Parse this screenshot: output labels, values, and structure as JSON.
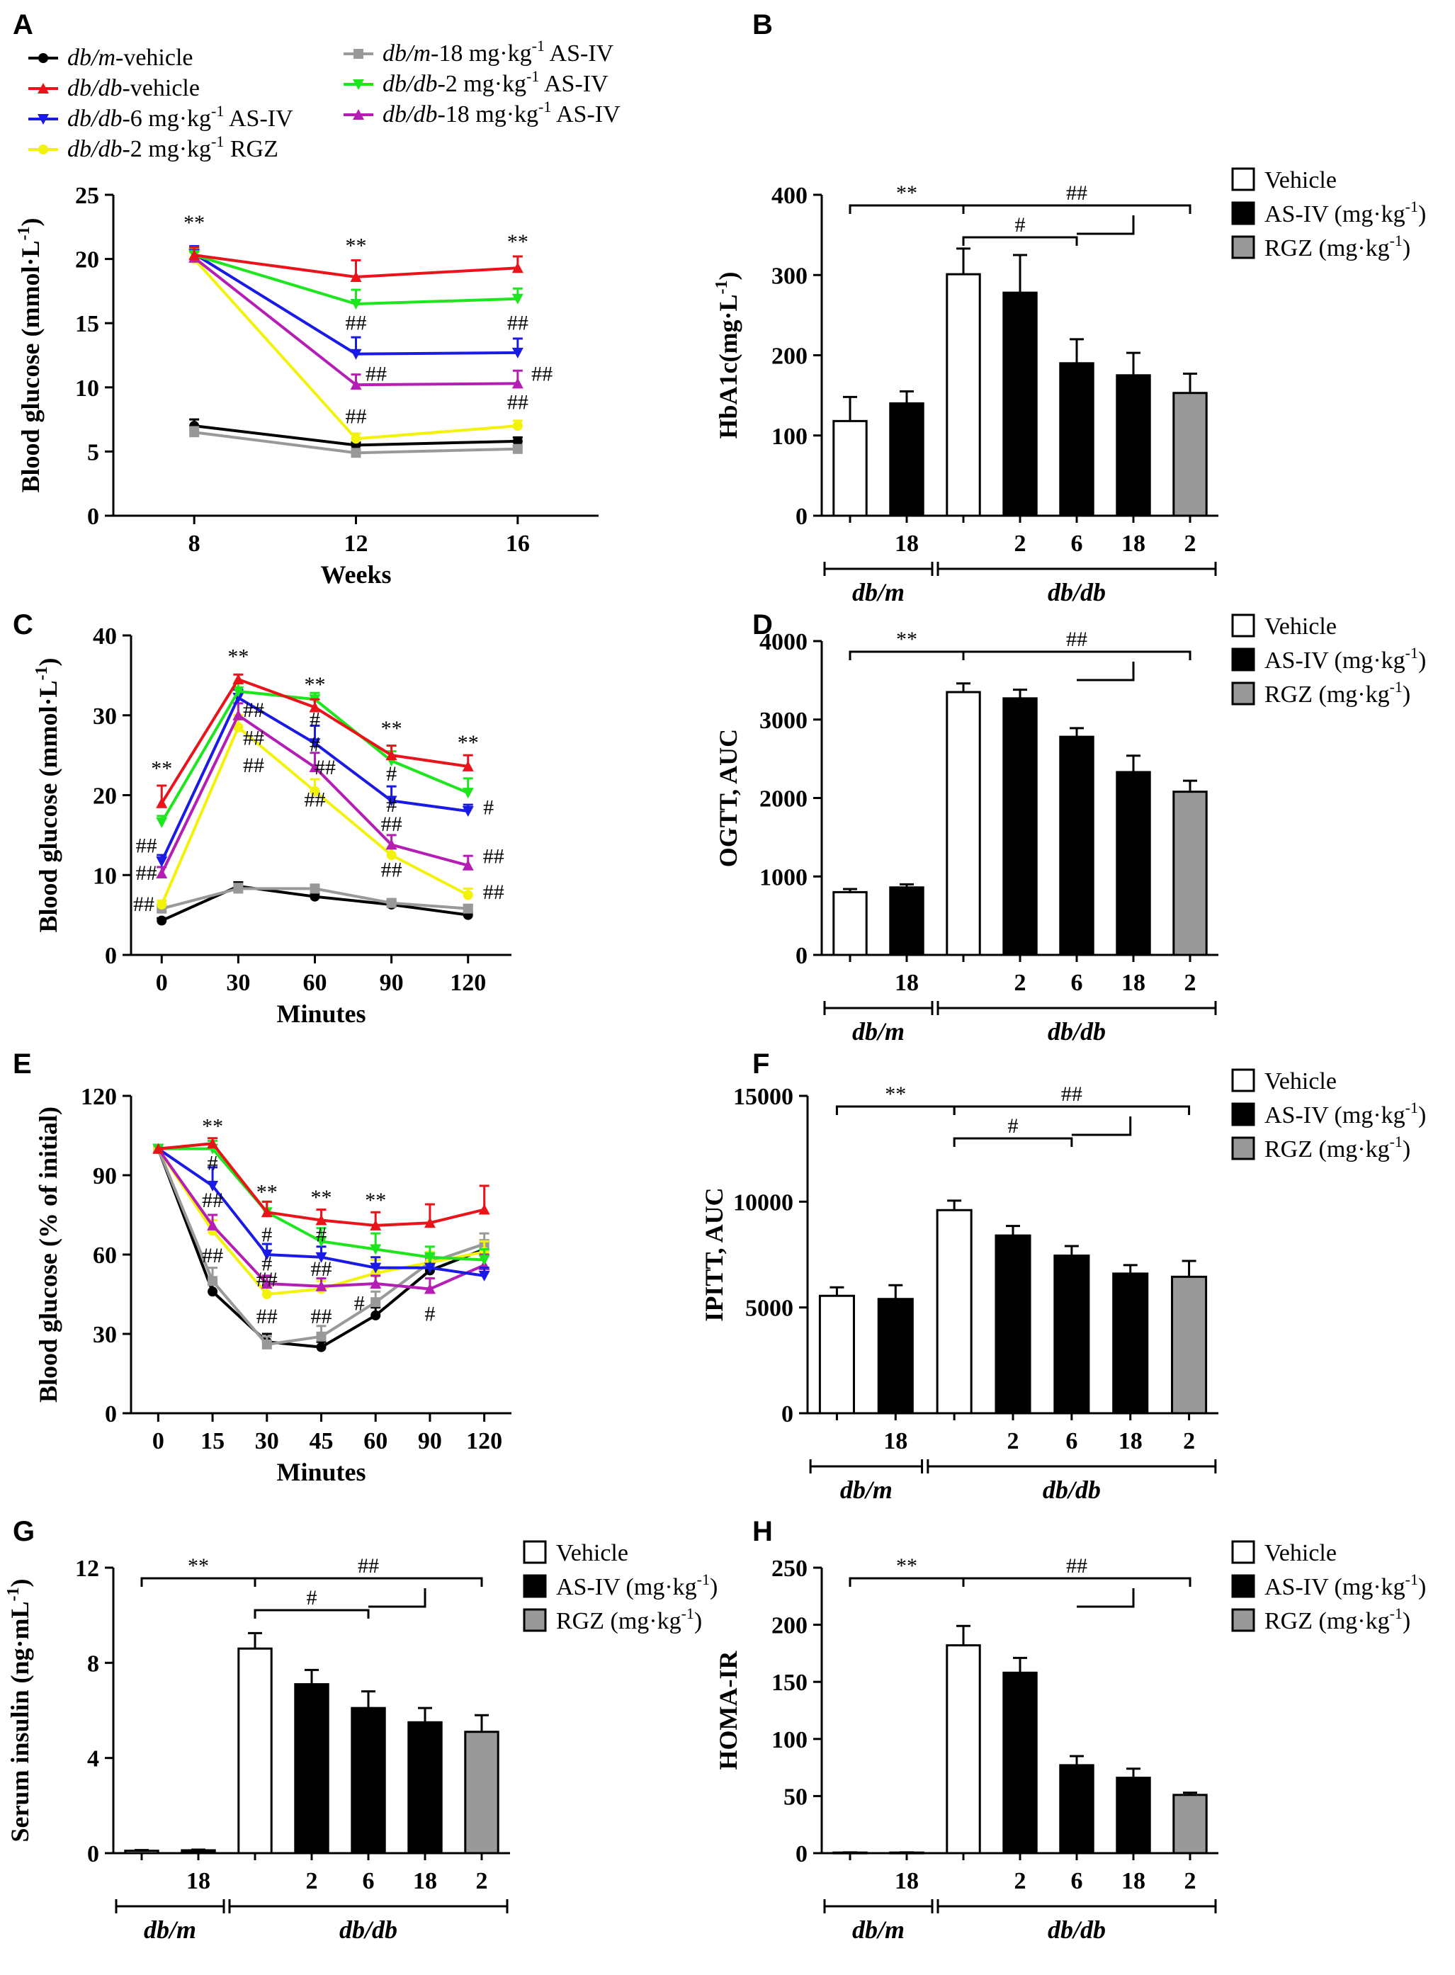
{
  "figure": {
    "series_legend": [
      {
        "name": "db/m-vehicle",
        "color": "#000000"
      },
      {
        "name": "db/db-vehicle",
        "color": "#e8141a"
      },
      {
        "name": "db/db-6 mg·kg-1 AS-IV",
        "color": "#1a1ae6"
      },
      {
        "name": "db/db-2 mg·kg-1 RGZ",
        "color": "#f2f20a"
      },
      {
        "name": "db/m-18 mg·kg-1 AS-IV",
        "color": "#999999"
      },
      {
        "name": "db/db-2 mg·kg-1 AS-IV",
        "color": "#1ee61e"
      },
      {
        "name": "db/db-18 mg·kg-1 AS-IV",
        "color": "#b41eb4"
      }
    ],
    "legend_items": [
      {
        "pre": "db/m",
        "post": "-vehicle"
      },
      {
        "pre": "db/db",
        "post": "-vehicle"
      },
      {
        "pre": "db/db",
        "post": "-6 mg·kg",
        "sup": "-1",
        "tail": " AS-IV"
      },
      {
        "pre": "db/db",
        "post": "-2 mg·kg",
        "sup": "-1",
        "tail": " RGZ"
      },
      {
        "pre": "db/m",
        "post": "-18 mg·kg",
        "sup": "-1",
        "tail": " AS-IV"
      },
      {
        "pre": "db/db",
        "post": "-2 mg·kg",
        "sup": "-1",
        "tail": " AS-IV"
      },
      {
        "pre": "db/db",
        "post": "-18 mg·kg",
        "sup": "-1",
        "tail": " AS-IV"
      }
    ],
    "bar_legend": {
      "items": [
        {
          "label": "Vehicle",
          "fill": "#ffffff"
        },
        {
          "label": "AS-IV (mg·kg",
          "sup": "-1",
          "close": ")",
          "fill": "#000000"
        },
        {
          "label": "RGZ (mg·kg",
          "sup": "-1",
          "close": ")",
          "fill": "#999999"
        }
      ]
    },
    "bar_group_labels": {
      "dbm": "db/m",
      "dbdb": "db/db"
    },
    "bar_dose_labels": [
      "",
      "18",
      "",
      "2",
      "6",
      "18",
      "2"
    ],
    "bar_fill_map": [
      "#ffffff",
      "#000000",
      "#ffffff",
      "#000000",
      "#000000",
      "#000000",
      "#999999"
    ]
  },
  "chart_data": [
    {
      "panel": "A",
      "type": "line",
      "xlabel": "Weeks",
      "ylabel": "Blood glucose (mmol·L",
      "ylabel_sup": "-1",
      "ylabel_close": ")",
      "x": [
        8,
        12,
        16
      ],
      "xlim": [
        6,
        18
      ],
      "ylim": [
        0,
        25
      ],
      "yticks": [
        0,
        5,
        10,
        15,
        20,
        25
      ],
      "series": [
        {
          "name": "db/m-vehicle",
          "color": "#000000",
          "values": [
            7.0,
            5.5,
            5.8
          ],
          "err": [
            0.5,
            0.2,
            0.3
          ]
        },
        {
          "name": "db/m-18 mg·kg-1 AS-IV",
          "color": "#999999",
          "values": [
            6.5,
            4.9,
            5.2
          ],
          "err": [
            0.4,
            0.2,
            0.3
          ]
        },
        {
          "name": "db/db-2 mg·kg-1 RGZ",
          "color": "#f2f20a",
          "values": [
            20.0,
            6.0,
            7.0
          ],
          "err": [
            0.5,
            0.4,
            0.4
          ]
        },
        {
          "name": "db/db-18 mg·kg-1 AS-IV",
          "color": "#b41eb4",
          "values": [
            20.1,
            10.2,
            10.3
          ],
          "err": [
            0.5,
            0.8,
            1.0
          ]
        },
        {
          "name": "db/db-6 mg·kg-1 AS-IV",
          "color": "#1a1ae6",
          "values": [
            20.4,
            12.6,
            12.7
          ],
          "err": [
            0.6,
            1.3,
            1.1
          ]
        },
        {
          "name": "db/db-2 mg·kg-1 AS-IV",
          "color": "#1ee61e",
          "values": [
            20.3,
            16.5,
            16.9
          ],
          "err": [
            0.6,
            1.1,
            0.8
          ]
        },
        {
          "name": "db/db-vehicle",
          "color": "#e8141a",
          "values": [
            20.3,
            18.6,
            19.3
          ],
          "err": [
            0.6,
            1.3,
            0.9
          ]
        }
      ],
      "annotations": [
        {
          "text": "**",
          "x": 8,
          "y": 22.3
        },
        {
          "text": "**",
          "x": 12,
          "y": 20.5
        },
        {
          "text": "**",
          "x": 16,
          "y": 20.8
        },
        {
          "text": "##",
          "x": 12,
          "y": 14.5
        },
        {
          "text": "##",
          "x": 16,
          "y": 14.5
        },
        {
          "text": "##",
          "x": 12.5,
          "y": 10.5
        },
        {
          "text": "##",
          "x": 16.6,
          "y": 10.5
        },
        {
          "text": "##",
          "x": 12,
          "y": 7.2
        },
        {
          "text": "##",
          "x": 16,
          "y": 8.3
        }
      ]
    },
    {
      "panel": "B",
      "type": "bar",
      "ylabel": "HbA1c(mg·L",
      "ylabel_sup": "-1",
      "ylabel_close": ")",
      "ylim": [
        0,
        400
      ],
      "yticks": [
        0,
        100,
        200,
        300,
        400
      ],
      "values": [
        118,
        140,
        301,
        278,
        190,
        175,
        153
      ],
      "err": [
        30,
        15,
        32,
        47,
        30,
        28,
        24
      ],
      "annotations": [
        "**",
        "##",
        "#"
      ]
    },
    {
      "panel": "C",
      "type": "line",
      "xlabel": "Minutes",
      "ylabel": "Blood glucose (mmol·L",
      "ylabel_sup": "-1",
      "ylabel_close": ")",
      "x": [
        0,
        30,
        60,
        90,
        120
      ],
      "xlim": [
        -12,
        137
      ],
      "ylim": [
        0,
        40
      ],
      "yticks": [
        0,
        10,
        20,
        30,
        40
      ],
      "series": [
        {
          "name": "db/m-vehicle",
          "color": "#000000",
          "values": [
            4.3,
            8.6,
            7.3,
            6.3,
            5.0
          ],
          "err": [
            0.3,
            0.5,
            0.4,
            0.4,
            0.3
          ]
        },
        {
          "name": "db/m-18 mg·kg-1 AS-IV",
          "color": "#999999",
          "values": [
            5.8,
            8.3,
            8.3,
            6.5,
            5.8
          ],
          "err": [
            0.4,
            0.6,
            0.5,
            0.5,
            0.4
          ]
        },
        {
          "name": "db/db-2 mg·kg-1 RGZ",
          "color": "#f2f20a",
          "values": [
            6.3,
            28.5,
            20.5,
            12.5,
            7.5
          ],
          "err": [
            0.5,
            1.5,
            1.5,
            1.0,
            0.8
          ]
        },
        {
          "name": "db/db-18 mg·kg-1 AS-IV",
          "color": "#b41eb4",
          "values": [
            10.2,
            30.0,
            23.5,
            13.8,
            11.2
          ],
          "err": [
            0.8,
            1.5,
            1.8,
            1.2,
            1.2
          ]
        },
        {
          "name": "db/db-6 mg·kg-1 AS-IV",
          "color": "#1a1ae6",
          "values": [
            11.7,
            32.2,
            26.5,
            19.3,
            18.0
          ],
          "err": [
            0.8,
            1.0,
            2.2,
            1.8,
            0.8
          ]
        },
        {
          "name": "db/db-2 mg·kg-1 AS-IV",
          "color": "#1ee61e",
          "values": [
            16.6,
            33.0,
            32.0,
            24.3,
            20.3
          ],
          "err": [
            0.8,
            1.0,
            0.8,
            1.2,
            1.8
          ]
        },
        {
          "name": "db/db-vehicle",
          "color": "#e8141a",
          "values": [
            19.0,
            34.5,
            31.0,
            25.0,
            23.6
          ],
          "err": [
            2.2,
            0.6,
            1.0,
            1.2,
            1.4
          ]
        }
      ],
      "annotations": [
        {
          "text": "**",
          "x": 0,
          "y": 22.5
        },
        {
          "text": "**",
          "x": 30,
          "y": 36.5
        },
        {
          "text": "**",
          "x": 60,
          "y": 33.0
        },
        {
          "text": "**",
          "x": 90,
          "y": 27.5
        },
        {
          "text": "**",
          "x": 120,
          "y": 25.7
        },
        {
          "text": "##",
          "x": 36,
          "y": 29.8
        },
        {
          "text": "##",
          "x": 36,
          "y": 26.3
        },
        {
          "text": "##",
          "x": 36,
          "y": 22.9
        },
        {
          "text": "#",
          "x": 60,
          "y": 28.6
        },
        {
          "text": "#",
          "x": 60,
          "y": 25.5
        },
        {
          "text": "##",
          "x": 64,
          "y": 22.6
        },
        {
          "text": "##",
          "x": 60,
          "y": 18.6
        },
        {
          "text": "#",
          "x": 90,
          "y": 21.8
        },
        {
          "text": "#",
          "x": 90,
          "y": 17.9
        },
        {
          "text": "##",
          "x": 90,
          "y": 15.5
        },
        {
          "text": "##",
          "x": 90,
          "y": 9.8
        },
        {
          "text": "#",
          "x": 128,
          "y": 17.6
        },
        {
          "text": "##",
          "x": 130,
          "y": 11.5
        },
        {
          "text": "##",
          "x": 130,
          "y": 7.0
        },
        {
          "text": "##",
          "x": -6,
          "y": 12.8
        },
        {
          "text": "##",
          "x": -6,
          "y": 9.4
        },
        {
          "text": "##",
          "x": -7,
          "y": 5.5
        }
      ]
    },
    {
      "panel": "D",
      "type": "bar",
      "ylabel": "OGTT, AUC",
      "ylim": [
        0,
        4000
      ],
      "yticks": [
        0,
        1000,
        2000,
        3000,
        4000
      ],
      "values": [
        800,
        860,
        3350,
        3270,
        2780,
        2330,
        2080
      ],
      "err": [
        40,
        40,
        110,
        110,
        110,
        210,
        140
      ],
      "annotations": [
        "**",
        "##"
      ]
    },
    {
      "panel": "E",
      "type": "line",
      "xlabel": "Minutes",
      "ylabel": "Blood glucose (% of initial)",
      "x_cat": [
        "0",
        "15",
        "30",
        "45",
        "60",
        "90",
        "120"
      ],
      "x": [
        0,
        1,
        2,
        3,
        4,
        5,
        6
      ],
      "xlim": [
        -0.5,
        6.5
      ],
      "ylim": [
        0,
        120
      ],
      "yticks": [
        0,
        30,
        60,
        90,
        120
      ],
      "series": [
        {
          "name": "db/m-vehicle",
          "color": "#000000",
          "values": [
            100,
            46,
            27,
            25,
            37,
            54,
            62
          ],
          "err": [
            0,
            3,
            3,
            2,
            3,
            3,
            3
          ]
        },
        {
          "name": "db/m-18 mg·kg-1 AS-IV",
          "color": "#999999",
          "values": [
            100,
            50,
            26,
            29,
            42,
            57,
            64
          ],
          "err": [
            0,
            5,
            3,
            4,
            4,
            3,
            4
          ]
        },
        {
          "name": "db/db-2 mg·kg-1 RGZ",
          "color": "#f2f20a",
          "values": [
            100,
            69,
            45,
            47,
            53,
            57,
            61
          ],
          "err": [
            0,
            4,
            3,
            3,
            5,
            4,
            4
          ]
        },
        {
          "name": "db/db-18 mg·kg-1 AS-IV",
          "color": "#b41eb4",
          "values": [
            100,
            71,
            49,
            48,
            49,
            47,
            56
          ],
          "err": [
            0,
            4,
            3,
            3,
            3,
            4,
            4
          ]
        },
        {
          "name": "db/db-6 mg·kg-1 AS-IV",
          "color": "#1a1ae6",
          "values": [
            100,
            86,
            60,
            59,
            55,
            55,
            52
          ],
          "err": [
            0,
            7,
            4,
            4,
            4,
            4,
            3
          ]
        },
        {
          "name": "db/db-2 mg·kg-1 AS-IV",
          "color": "#1ee61e",
          "values": [
            100,
            100,
            76,
            65,
            62,
            59,
            58
          ],
          "err": [
            0,
            3,
            4,
            5,
            6,
            4,
            4
          ]
        },
        {
          "name": "db/db-vehicle",
          "color": "#e8141a",
          "values": [
            100,
            102,
            76,
            73,
            71,
            72,
            77
          ],
          "err": [
            0,
            2,
            4,
            4,
            5,
            7,
            9
          ]
        }
      ],
      "annotations": [
        {
          "text": "**",
          "x": 1,
          "y": 106
        },
        {
          "text": "#",
          "x": 1,
          "y": 92
        },
        {
          "text": "##",
          "x": 1,
          "y": 78
        },
        {
          "text": "##",
          "x": 1,
          "y": 57
        },
        {
          "text": "**",
          "x": 2,
          "y": 81
        },
        {
          "text": "#",
          "x": 2,
          "y": 65
        },
        {
          "text": "#",
          "x": 2,
          "y": 54
        },
        {
          "text": "##",
          "x": 2,
          "y": 48
        },
        {
          "text": "##",
          "x": 2,
          "y": 34
        },
        {
          "text": "**",
          "x": 3,
          "y": 79
        },
        {
          "text": "#",
          "x": 3,
          "y": 65
        },
        {
          "text": "##",
          "x": 3,
          "y": 52
        },
        {
          "text": "##",
          "x": 3,
          "y": 34
        },
        {
          "text": "**",
          "x": 4,
          "y": 78
        },
        {
          "text": "#",
          "x": 3.7,
          "y": 39
        },
        {
          "text": "#",
          "x": 5,
          "y": 35
        }
      ]
    },
    {
      "panel": "F",
      "type": "bar",
      "ylabel": "IPITT, AUC",
      "ylim": [
        0,
        15000
      ],
      "yticks": [
        0,
        5000,
        10000,
        15000
      ],
      "values": [
        5550,
        5400,
        9600,
        8400,
        7450,
        6600,
        6450
      ],
      "err": [
        400,
        650,
        450,
        450,
        450,
        400,
        750
      ],
      "annotations": [
        "**",
        "##",
        "#"
      ]
    },
    {
      "panel": "G",
      "type": "bar",
      "ylabel": "Serum insulin (ng·mL",
      "ylabel_sup": "-1",
      "ylabel_close": ")",
      "ylim": [
        0,
        12
      ],
      "yticks": [
        0,
        4,
        8,
        12
      ],
      "values": [
        0.1,
        0.12,
        8.6,
        7.1,
        6.1,
        5.5,
        5.1
      ],
      "err": [
        0.03,
        0.03,
        0.65,
        0.6,
        0.7,
        0.6,
        0.7
      ],
      "annotations": [
        "**",
        "##",
        "#"
      ]
    },
    {
      "panel": "H",
      "type": "bar",
      "ylabel": "HOMA-IR",
      "ylim": [
        0,
        250
      ],
      "yticks": [
        0,
        50,
        100,
        150,
        200,
        250
      ],
      "values": [
        0.5,
        0.5,
        182,
        158,
        77,
        66,
        51
      ],
      "err": [
        0.2,
        0.2,
        17,
        13,
        8,
        8,
        2
      ],
      "annotations": [
        "**",
        "##"
      ]
    }
  ]
}
